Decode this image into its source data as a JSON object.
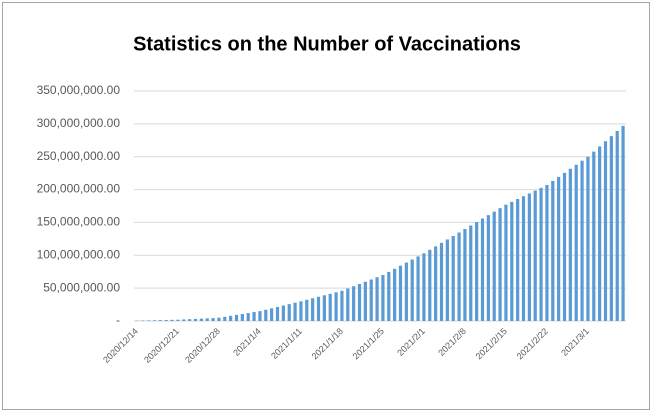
{
  "chart_data": {
    "type": "bar",
    "title": "Statistics on the Number of Vaccinations",
    "categories": [
      "2020/12/14",
      null,
      null,
      null,
      null,
      null,
      null,
      "2020/12/21",
      null,
      null,
      null,
      null,
      null,
      null,
      "2020/12/28",
      null,
      null,
      null,
      null,
      null,
      null,
      "2021/1/4",
      null,
      null,
      null,
      null,
      null,
      null,
      "2021/1/11",
      null,
      null,
      null,
      null,
      null,
      null,
      "2021/1/18",
      null,
      null,
      null,
      null,
      null,
      null,
      "2021/1/25",
      null,
      null,
      null,
      null,
      null,
      null,
      "2021/2/1",
      null,
      null,
      null,
      null,
      null,
      null,
      "2021/2/8",
      null,
      null,
      null,
      null,
      null,
      null,
      "2021/2/15",
      null,
      null,
      null,
      null,
      null,
      null,
      "2021/2/22",
      null,
      null,
      null,
      null,
      null,
      null,
      "2021/3/1",
      null,
      null,
      null,
      null,
      null,
      null
    ],
    "values": [
      500000,
      700000,
      900000,
      1100000,
      1300000,
      1500000,
      1800000,
      2000000,
      2400000,
      2800000,
      3200000,
      3600000,
      4000000,
      4500000,
      5000000,
      6400000,
      7900000,
      9300000,
      10700000,
      12100000,
      13600000,
      15000000,
      17100000,
      19300000,
      21400000,
      23600000,
      25700000,
      27900000,
      30000000,
      32300000,
      34600000,
      36900000,
      39100000,
      41400000,
      43700000,
      46000000,
      49400000,
      52900000,
      56300000,
      59700000,
      63100000,
      66600000,
      70000000,
      74700000,
      79400000,
      84100000,
      88900000,
      93600000,
      98300000,
      103000000,
      108300000,
      113600000,
      118900000,
      124100000,
      129400000,
      134700000,
      140000000,
      145300000,
      150600000,
      155900000,
      161100000,
      166400000,
      171700000,
      177000000,
      181300000,
      185600000,
      189900000,
      194100000,
      198400000,
      202700000,
      207000000,
      213100000,
      219300000,
      225400000,
      231600000,
      237700000,
      243900000,
      250000000,
      257800000,
      265700000,
      273500000,
      281300000,
      289200000,
      297000000
    ],
    "color": "#5b9bd5",
    "ylim": [
      0,
      350000000
    ],
    "yticks": [
      {
        "value": 0,
        "label": "-"
      },
      {
        "value": 50000000,
        "label": "50,000,000.00"
      },
      {
        "value": 100000000,
        "label": "100,000,000.00"
      },
      {
        "value": 150000000,
        "label": "150,000,000.00"
      },
      {
        "value": 200000000,
        "label": "200,000,000.00"
      },
      {
        "value": 250000000,
        "label": "250,000,000.00"
      },
      {
        "value": 300000000,
        "label": "300,000,000.00"
      },
      {
        "value": 350000000,
        "label": "350,000,000.00"
      }
    ],
    "grid": true
  }
}
